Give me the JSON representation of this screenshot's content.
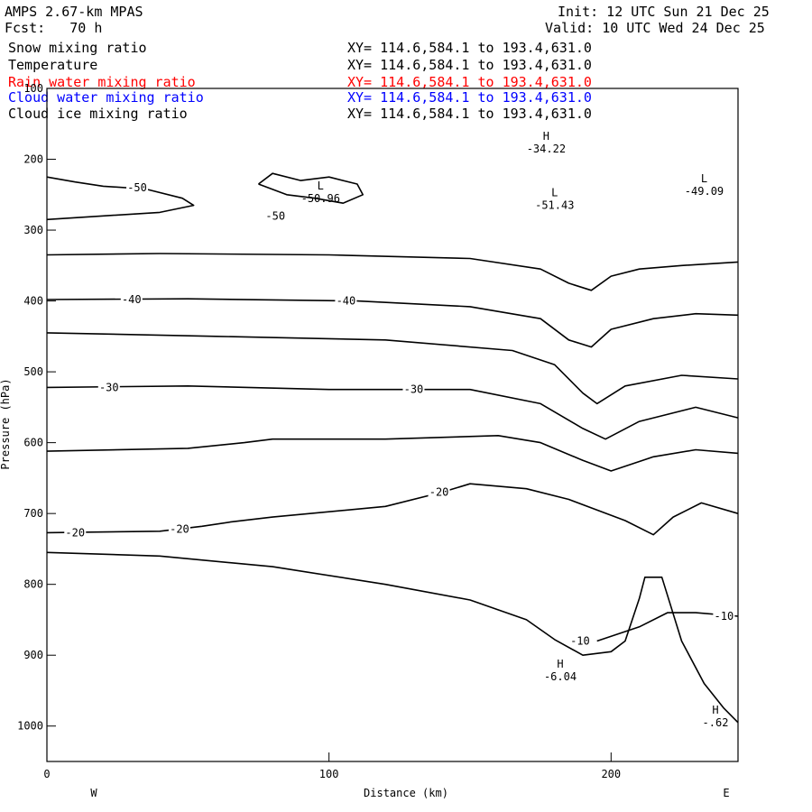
{
  "header": {
    "model": "AMPS 2.67-km MPAS",
    "fcst": "Fcst:   70 h",
    "init": "Init: 12 UTC Sun 21 Dec 25",
    "valid": "Valid: 10 UTC Wed 24 Dec 25"
  },
  "legend": [
    {
      "name": "Snow mixing ratio",
      "xy": "XY= 114.6,584.1 to 193.4,631.0",
      "color": "#000000"
    },
    {
      "name": "Temperature",
      "xy": "XY= 114.6,584.1 to 193.4,631.0",
      "color": "#000000"
    },
    {
      "name": "Rain water mixing ratio",
      "xy": "XY= 114.6,584.1 to 193.4,631.0",
      "color": "#ff0000"
    },
    {
      "name": "Cloud water mixing ratio",
      "xy": "XY= 114.6,584.1 to 193.4,631.0",
      "color": "#0000ff"
    },
    {
      "name": "Cloud ice mixing ratio",
      "xy": "XY= 114.6,584.1 to 193.4,631.0",
      "color": "#000000"
    }
  ],
  "chart_data": {
    "type": "line",
    "xlabel": "Distance (km)",
    "ylabel": "Pressure (hPa)",
    "xlim": [
      0,
      245
    ],
    "ylim": [
      1050,
      100
    ],
    "xticks": [
      0,
      100,
      200
    ],
    "yticks": [
      100,
      200,
      300,
      400,
      500,
      600,
      700,
      800,
      900,
      1000
    ],
    "x_end_labels": {
      "left": "W",
      "right": "E"
    },
    "series": [
      {
        "name": "-50",
        "points": [
          [
            0,
            225
          ],
          [
            10,
            232
          ],
          [
            20,
            238
          ],
          [
            35,
            242
          ],
          [
            48,
            255
          ],
          [
            52,
            265
          ],
          [
            40,
            275
          ],
          [
            20,
            280
          ],
          [
            0,
            285
          ]
        ]
      },
      {
        "name": "",
        "points": [
          [
            0,
            335
          ],
          [
            40,
            333
          ],
          [
            100,
            335
          ],
          [
            150,
            340
          ],
          [
            175,
            355
          ],
          [
            185,
            375
          ],
          [
            193,
            385
          ],
          [
            200,
            365
          ],
          [
            210,
            355
          ],
          [
            225,
            350
          ],
          [
            245,
            345
          ]
        ]
      },
      {
        "name": "-40",
        "points": [
          [
            0,
            398
          ],
          [
            50,
            397
          ],
          [
            110,
            400
          ],
          [
            150,
            408
          ],
          [
            175,
            425
          ],
          [
            185,
            455
          ],
          [
            193,
            465
          ],
          [
            200,
            440
          ],
          [
            215,
            425
          ],
          [
            230,
            418
          ],
          [
            245,
            420
          ]
        ]
      },
      {
        "name": "",
        "points": [
          [
            0,
            445
          ],
          [
            60,
            450
          ],
          [
            120,
            455
          ],
          [
            165,
            470
          ],
          [
            180,
            490
          ],
          [
            190,
            530
          ],
          [
            195,
            545
          ],
          [
            205,
            520
          ],
          [
            225,
            505
          ],
          [
            245,
            510
          ]
        ]
      },
      {
        "name": "-30",
        "points": [
          [
            0,
            522
          ],
          [
            50,
            520
          ],
          [
            100,
            525
          ],
          [
            150,
            525
          ],
          [
            175,
            545
          ],
          [
            190,
            580
          ],
          [
            198,
            595
          ],
          [
            210,
            570
          ],
          [
            230,
            550
          ],
          [
            245,
            565
          ]
        ]
      },
      {
        "name": "",
        "points": [
          [
            0,
            612
          ],
          [
            50,
            608
          ],
          [
            70,
            600
          ],
          [
            80,
            595
          ],
          [
            120,
            595
          ],
          [
            160,
            590
          ],
          [
            175,
            600
          ],
          [
            190,
            625
          ],
          [
            200,
            640
          ],
          [
            215,
            620
          ],
          [
            230,
            610
          ],
          [
            245,
            615
          ]
        ]
      },
      {
        "name": "-20",
        "points": [
          [
            0,
            727
          ],
          [
            40,
            725
          ],
          [
            55,
            718
          ],
          [
            65,
            712
          ],
          [
            80,
            705
          ],
          [
            120,
            690
          ],
          [
            140,
            670
          ],
          [
            150,
            658
          ],
          [
            170,
            665
          ],
          [
            185,
            680
          ],
          [
            205,
            710
          ],
          [
            215,
            730
          ],
          [
            222,
            705
          ],
          [
            232,
            685
          ],
          [
            245,
            700
          ]
        ]
      },
      {
        "name": "",
        "points": [
          [
            0,
            755
          ],
          [
            40,
            760
          ],
          [
            80,
            775
          ],
          [
            120,
            800
          ],
          [
            150,
            822
          ],
          [
            170,
            850
          ],
          [
            180,
            878
          ],
          [
            190,
            900
          ],
          [
            200,
            895
          ],
          [
            205,
            880
          ],
          [
            210,
            820
          ],
          [
            212,
            790
          ],
          [
            218,
            790
          ],
          [
            225,
            880
          ],
          [
            233,
            940
          ],
          [
            240,
            975
          ],
          [
            245,
            995
          ]
        ]
      },
      {
        "name": "-10",
        "points": [
          [
            195,
            880
          ],
          [
            210,
            860
          ],
          [
            220,
            840
          ],
          [
            230,
            840
          ],
          [
            245,
            845
          ]
        ]
      },
      {
        "name": "L",
        "points": [
          [
            75,
            235
          ],
          [
            85,
            250
          ],
          [
            95,
            255
          ],
          [
            105,
            262
          ],
          [
            112,
            250
          ],
          [
            110,
            235
          ],
          [
            100,
            225
          ],
          [
            90,
            230
          ],
          [
            80,
            220
          ],
          [
            75,
            235
          ]
        ]
      }
    ],
    "extrema": [
      {
        "type": "L",
        "value": "-50.96",
        "x": 97,
        "p": 250
      },
      {
        "type": "L",
        "value": "-51.43",
        "x": 180,
        "p": 260
      },
      {
        "type": "L",
        "value": "-49.09",
        "x": 233,
        "p": 240
      },
      {
        "type": "H",
        "value": "-34.22",
        "x": 177,
        "p": 180
      },
      {
        "type": "H",
        "value": "-6.04",
        "x": 182,
        "p": 925
      },
      {
        "type": "H",
        "value": "-.62",
        "x": 237,
        "p": 990
      }
    ],
    "contour_labels": [
      {
        "text": "-50",
        "x": 32,
        "p": 240
      },
      {
        "text": "-50",
        "x": 81,
        "p": 280
      },
      {
        "text": "-40",
        "x": 30,
        "p": 398
      },
      {
        "text": "-40",
        "x": 106,
        "p": 400
      },
      {
        "text": "-30",
        "x": 22,
        "p": 522
      },
      {
        "text": "-30",
        "x": 130,
        "p": 525
      },
      {
        "text": "-20",
        "x": 10,
        "p": 727
      },
      {
        "text": "-20",
        "x": 47,
        "p": 722
      },
      {
        "text": "-20",
        "x": 139,
        "p": 670
      },
      {
        "text": "-10",
        "x": 189,
        "p": 880
      },
      {
        "text": "-10",
        "x": 240,
        "p": 845
      }
    ]
  }
}
